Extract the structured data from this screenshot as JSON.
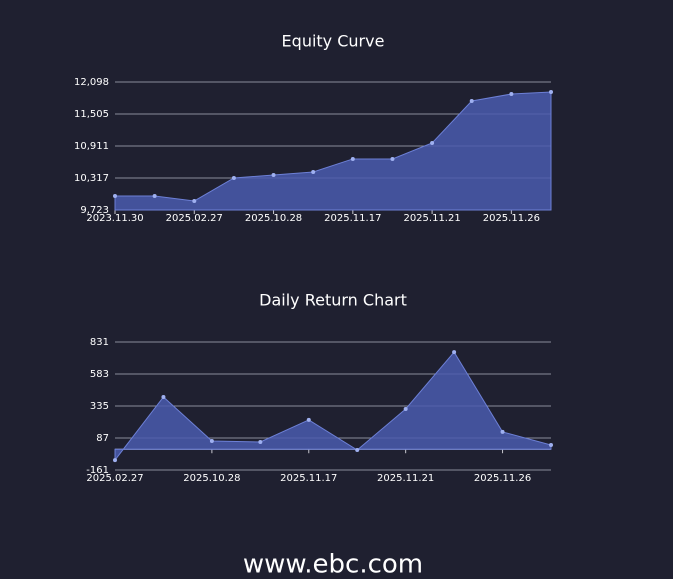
{
  "chart_data": [
    {
      "type": "area",
      "title": "Equity Curve",
      "categories": [
        "2023.11.30",
        null,
        "2025.02.27",
        null,
        "2025.10.28",
        null,
        "2025.11.17",
        null,
        "2025.11.21",
        null,
        "2025.11.26",
        null
      ],
      "values": [
        9983,
        9983,
        9891,
        10317,
        10373,
        10428,
        10670,
        10670,
        10966,
        11746,
        11875,
        11912
      ],
      "color": "#6d80d6",
      "ylim": [
        9723,
        12098
      ],
      "yticks": [
        {
          "value": 9723,
          "label": "9,723"
        },
        {
          "value": 10317,
          "label": "10,317"
        },
        {
          "value": 10911,
          "label": "10,911"
        },
        {
          "value": 11505,
          "label": "11,505"
        },
        {
          "value": 12098,
          "label": "12,098"
        }
      ],
      "grid": true
    },
    {
      "type": "area",
      "title": "Daily Return Chart",
      "categories": [
        "2025.02.27",
        null,
        "2025.10.28",
        null,
        "2025.11.17",
        null,
        "2025.11.21",
        null,
        "2025.11.26",
        null
      ],
      "values": [
        -84,
        405,
        64,
        56,
        227,
        -6,
        312,
        753,
        134,
        33
      ],
      "color": "#6d80d6",
      "ylim": [
        -161,
        831
      ],
      "yticks": [
        -161,
        87,
        335,
        583,
        831
      ],
      "grid": true
    }
  ],
  "footer": "www.ebc.com"
}
